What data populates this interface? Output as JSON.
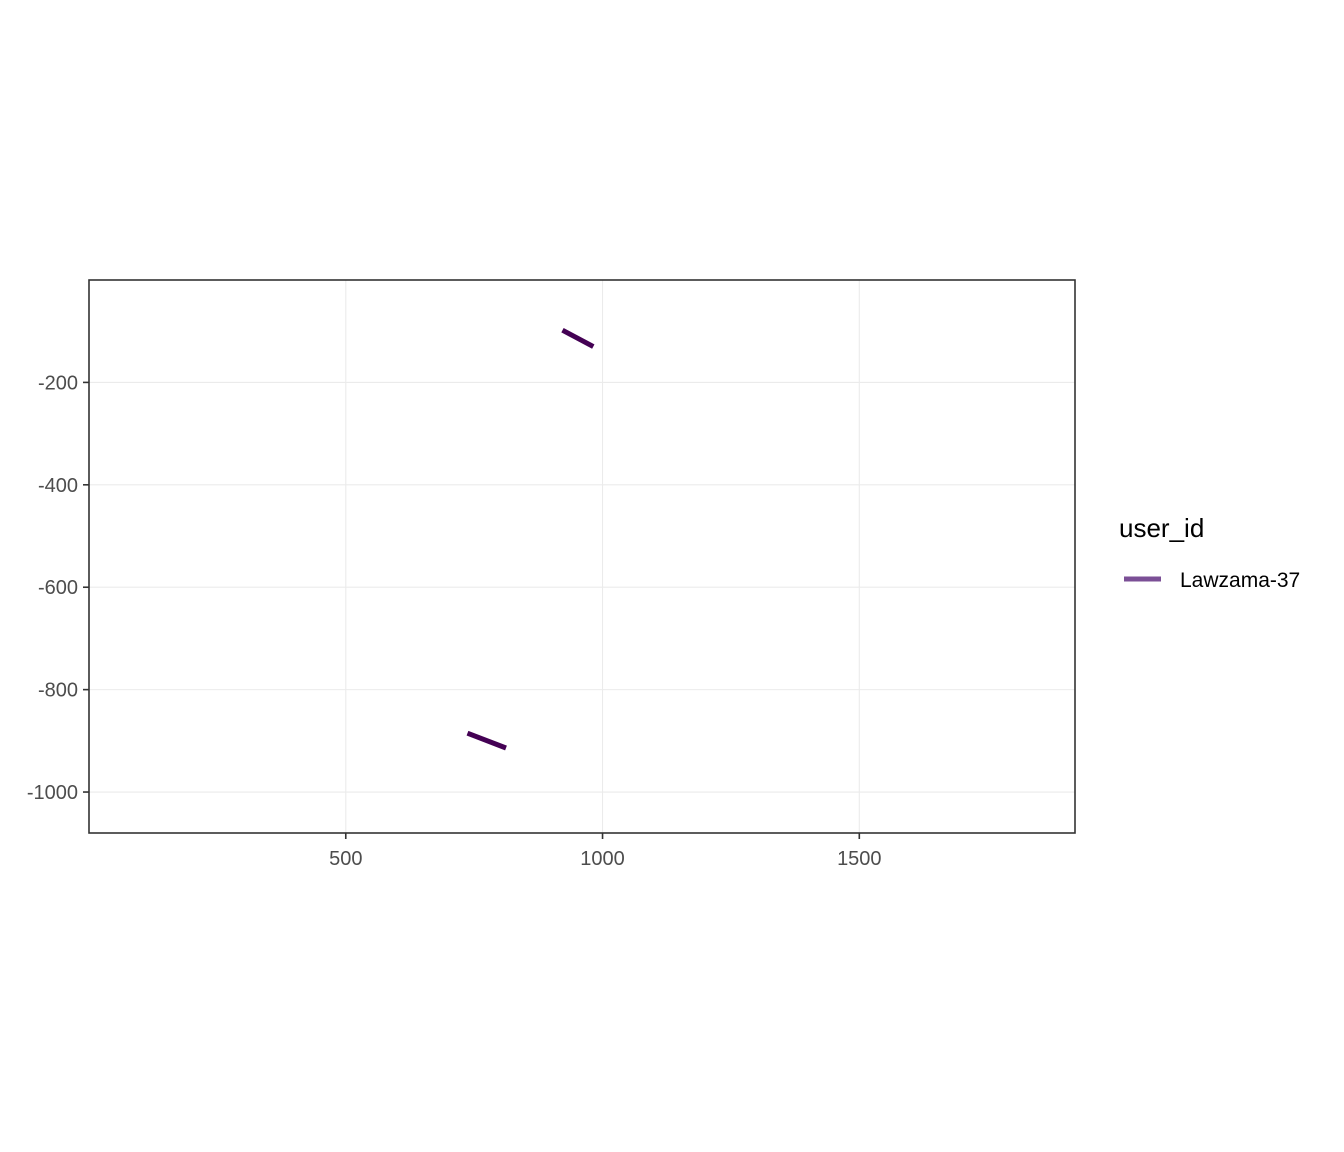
{
  "chart_data": {
    "type": "line",
    "title": "",
    "xlabel": "",
    "ylabel": "",
    "xlim": [
      0,
      1920
    ],
    "ylim": [
      -1080,
      0
    ],
    "x_ticks": [
      500,
      1000,
      1500
    ],
    "x_tick_labels": [
      "500",
      "1000",
      "1500"
    ],
    "y_ticks": [
      -200,
      -400,
      -600,
      -800,
      -1000
    ],
    "y_tick_labels": [
      "-200",
      "-400",
      "-600",
      "-800",
      "-1000"
    ],
    "grid": true,
    "legend": {
      "title": "user_id",
      "placement": "right",
      "entries": [
        {
          "name": "Lawzama-37",
          "color": "#7b4f96"
        }
      ]
    },
    "series": [
      {
        "name": "Lawzama-37",
        "color": "#440154",
        "segments": [
          {
            "x": [
              922,
              982
            ],
            "y": [
              -98,
              -130
            ]
          },
          {
            "x": [
              737,
              812
            ],
            "y": [
              -885,
              -914
            ]
          }
        ]
      }
    ]
  }
}
